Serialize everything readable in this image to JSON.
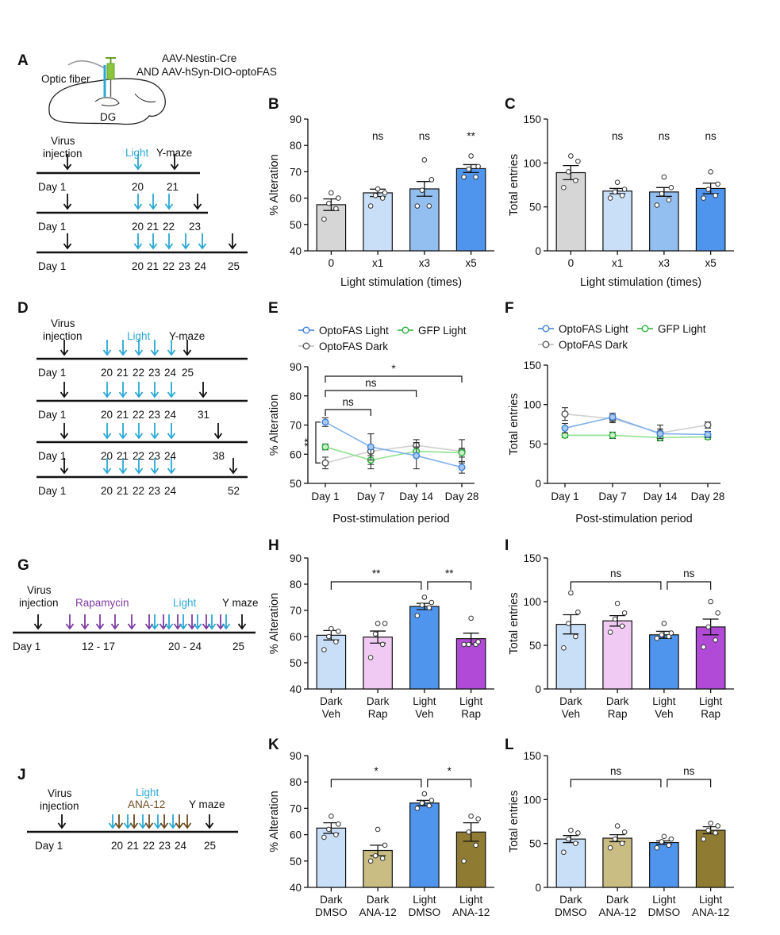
{
  "colors": {
    "dark_gray_bar": "#d6d6d6",
    "light_blue_bar": "#c9dff7",
    "mid_blue_bar": "#92bff0",
    "blue_bar": "#4f95ee",
    "pink_bar": "#f0caf3",
    "purple_bar": "#b24ad8",
    "khaki_bar": "#c9bd83",
    "olive_bar": "#8f7b32",
    "optofas_light": "#3c7fd9",
    "gfp_light": "#27b23a",
    "optofas_dark": "#9b9b9b",
    "light_arrow": "#29a8d6",
    "rapamycin_arrow": "#7d3aa3",
    "ana12_arrow": "#6e4a1f",
    "black_arrow": "#111111"
  },
  "panels": {
    "A": {
      "letter": "A",
      "virus_label": "AAV-Nestin-Cre",
      "virus_label2": "AND AAV-hSyn-DIO-optoFAS",
      "fiber_label": "Optic fiber",
      "region_label": "DG",
      "timeline_headers": {
        "virus": "Virus",
        "virus2": "injection",
        "light": "Light",
        "ymaze": "Y-maze"
      },
      "rows": [
        {
          "days": [
            "Day 1",
            "20",
            "21"
          ]
        },
        {
          "days": [
            "Day 1",
            "20",
            "21",
            "22",
            "23"
          ]
        },
        {
          "days": [
            "Day 1",
            "20",
            "21",
            "22",
            "23",
            "24",
            "25"
          ]
        }
      ]
    },
    "D": {
      "letter": "D",
      "timeline_headers": {
        "virus": "Virus",
        "virus2": "injection",
        "light": "Light",
        "ymaze": "Y-maze"
      },
      "rows": [
        {
          "days": [
            "Day 1",
            "20",
            "21",
            "22",
            "23",
            "24",
            "25"
          ]
        },
        {
          "days": [
            "Day 1",
            "20",
            "21",
            "22",
            "23",
            "24",
            "31"
          ]
        },
        {
          "days": [
            "Day 1",
            "20",
            "21",
            "22",
            "23",
            "24",
            "38"
          ]
        },
        {
          "days": [
            "Day 1",
            "20",
            "21",
            "22",
            "23",
            "24",
            "52"
          ]
        }
      ]
    },
    "G": {
      "letter": "G",
      "labels": {
        "virus": "Virus",
        "virus2": "injection",
        "drug": "Rapamycin",
        "light": "Light",
        "ymaze": "Y maze"
      },
      "days": [
        "Day 1",
        "12 - 17",
        "20 - 24",
        "25"
      ]
    },
    "J": {
      "letter": "J",
      "labels": {
        "virus": "Virus",
        "virus2": "injection",
        "light": "Light",
        "drug": "ANA-12",
        "ymaze": "Y maze"
      },
      "days": [
        "Day 1",
        "20",
        "21",
        "22",
        "23",
        "24",
        "25"
      ]
    }
  },
  "chart_data": [
    {
      "id": "B",
      "letter": "B",
      "type": "bar",
      "categories": [
        "0",
        "x1",
        "x3",
        "x5"
      ],
      "values": [
        57.5,
        62,
        63.5,
        71.2
      ],
      "sem": [
        2.2,
        1.4,
        2.8,
        1.5
      ],
      "points": [
        [
          52,
          56,
          58,
          60,
          62
        ],
        [
          57,
          60,
          61,
          62,
          63.5
        ],
        [
          57,
          57,
          63,
          67,
          74.5
        ],
        [
          68,
          68,
          71,
          72,
          76
        ]
      ],
      "significance": [
        "",
        "ns",
        "ns",
        "**"
      ],
      "ylabel": "% Alteration",
      "xlabel": "Light stimulation (times)",
      "ylim": [
        40,
        90
      ],
      "yticks": [
        40,
        50,
        60,
        70,
        80,
        90
      ]
    },
    {
      "id": "C",
      "letter": "C",
      "type": "bar",
      "categories": [
        "0",
        "x1",
        "x3",
        "x5"
      ],
      "values": [
        89,
        68,
        67,
        71
      ],
      "sem": [
        8,
        3,
        5,
        6
      ],
      "points": [
        [
          72,
          80,
          90,
          102,
          108
        ],
        [
          60,
          63,
          67,
          70,
          78
        ],
        [
          52,
          58,
          65,
          72,
          84
        ],
        [
          60,
          63,
          70,
          76,
          90
        ]
      ],
      "significance": [
        "",
        "ns",
        "ns",
        "ns"
      ],
      "ylabel": "Total entries",
      "xlabel": "Light stimulation (times)",
      "ylim": [
        0,
        150
      ],
      "yticks": [
        0,
        50,
        100,
        150
      ]
    },
    {
      "id": "E",
      "letter": "E",
      "type": "line",
      "categories": [
        "Day 1",
        "Day 7",
        "Day 14",
        "Day 28"
      ],
      "series": [
        {
          "name": "OptoFAS Light",
          "values": [
            71,
            62.5,
            59.5,
            55.5
          ],
          "sem": [
            1.5,
            4.5,
            4.5,
            2
          ],
          "color_key": "optofas_light"
        },
        {
          "name": "GFP Light",
          "values": [
            62.5,
            58,
            61,
            60.5
          ],
          "sem": [
            1,
            1.5,
            1.5,
            1.5
          ],
          "color_key": "gfp_light"
        },
        {
          "name": "OptoFAS Dark",
          "values": [
            57,
            61,
            63,
            61
          ],
          "sem": [
            2,
            6,
            2,
            4
          ],
          "color_key": "optofas_dark"
        }
      ],
      "significance_brackets": [
        {
          "from": 0,
          "to": 1,
          "label": "ns"
        },
        {
          "from": 0,
          "to": 2,
          "label": "ns"
        },
        {
          "from": 0,
          "to": 3,
          "label": "*"
        }
      ],
      "side_significance": "**",
      "ylabel": "% Alteration",
      "xlabel": "Post-stimulation period",
      "ylim": [
        50,
        90
      ],
      "yticks": [
        50,
        60,
        70,
        80,
        90
      ],
      "legend_position": "top"
    },
    {
      "id": "F",
      "letter": "F",
      "type": "line",
      "categories": [
        "Day 1",
        "Day 7",
        "Day 14",
        "Day 28"
      ],
      "series": [
        {
          "name": "OptoFAS Light",
          "values": [
            70,
            84,
            63,
            62
          ],
          "sem": [
            6,
            5,
            6,
            4
          ],
          "color_key": "optofas_light"
        },
        {
          "name": "GFP Light",
          "values": [
            61,
            61,
            58,
            59
          ],
          "sem": [
            3,
            4,
            3,
            3
          ],
          "color_key": "gfp_light"
        },
        {
          "name": "OptoFAS Dark",
          "values": [
            88,
            82,
            64,
            74
          ],
          "sem": [
            8,
            5,
            10,
            4
          ],
          "color_key": "optofas_dark"
        }
      ],
      "ylabel": "Total entries",
      "xlabel": "Post-stimulation period",
      "ylim": [
        0,
        150
      ],
      "yticks": [
        0,
        50,
        100,
        150
      ],
      "legend_position": "top"
    },
    {
      "id": "H",
      "letter": "H",
      "type": "bar",
      "categories": [
        "Dark Veh",
        "Dark Rap",
        "Light Veh",
        "Light Rap"
      ],
      "values": [
        60.5,
        59.8,
        71.5,
        59.2
      ],
      "sem": [
        1.8,
        2.3,
        1.2,
        2.1
      ],
      "points": [
        [
          55,
          58,
          60,
          62,
          63
        ],
        [
          52,
          57,
          61,
          65,
          65
        ],
        [
          68,
          71,
          72,
          73,
          75
        ],
        [
          57,
          57,
          57,
          58,
          67
        ]
      ],
      "brackets": [
        {
          "from": 0,
          "to": 2,
          "label": "**"
        },
        {
          "from": 2,
          "to": 3,
          "label": "**"
        }
      ],
      "ylabel": "% Alteration",
      "xlabel": "",
      "ylim": [
        40,
        90
      ],
      "yticks": [
        40,
        50,
        60,
        70,
        80,
        90
      ]
    },
    {
      "id": "I",
      "letter": "I",
      "type": "bar",
      "categories": [
        "Dark Veh",
        "Dark Rap",
        "Light Veh",
        "Light Rap"
      ],
      "values": [
        74,
        78,
        62,
        71
      ],
      "sem": [
        11,
        6,
        4,
        9
      ],
      "points": [
        [
          47,
          60,
          75,
          88,
          110
        ],
        [
          65,
          72,
          80,
          87,
          98
        ],
        [
          58,
          60,
          62,
          64,
          75
        ],
        [
          48,
          56,
          71,
          87,
          100
        ]
      ],
      "brackets": [
        {
          "from": 0,
          "to": 2,
          "label": "ns"
        },
        {
          "from": 2,
          "to": 3,
          "label": "ns"
        }
      ],
      "ylabel": "Total entries",
      "xlabel": "",
      "ylim": [
        0,
        150
      ],
      "yticks": [
        0,
        50,
        100,
        150
      ]
    },
    {
      "id": "K",
      "letter": "K",
      "type": "bar",
      "categories": [
        "Dark DMSO",
        "Dark ANA-12",
        "Light DMSO",
        "Light ANA-12"
      ],
      "values": [
        62.5,
        54,
        72,
        61
      ],
      "sem": [
        2,
        2,
        1,
        3.5
      ],
      "points": [
        [
          59,
          60,
          62,
          64,
          67
        ],
        [
          50,
          51,
          52,
          56,
          62
        ],
        [
          70,
          71,
          72,
          73,
          75.5
        ],
        [
          50,
          56,
          61,
          66,
          67
        ]
      ],
      "brackets": [
        {
          "from": 0,
          "to": 2,
          "label": "*"
        },
        {
          "from": 2,
          "to": 3,
          "label": "*"
        }
      ],
      "ylabel": "% Alteration",
      "xlabel": "",
      "ylim": [
        40,
        90
      ],
      "yticks": [
        40,
        50,
        60,
        70,
        80,
        90
      ]
    },
    {
      "id": "L",
      "letter": "L",
      "type": "bar",
      "categories": [
        "Dark DMSO",
        "Dark ANA-12",
        "Light DMSO",
        "Light ANA-12"
      ],
      "values": [
        55,
        56,
        51,
        65
      ],
      "sem": [
        4,
        4,
        2,
        4
      ],
      "points": [
        [
          40,
          50,
          55,
          62,
          65
        ],
        [
          45,
          50,
          55,
          63,
          70
        ],
        [
          45,
          48,
          52,
          55,
          58
        ],
        [
          55,
          62,
          65,
          70,
          73
        ]
      ],
      "brackets": [
        {
          "from": 0,
          "to": 2,
          "label": "ns"
        },
        {
          "from": 2,
          "to": 3,
          "label": "ns"
        }
      ],
      "ylabel": "Total entries",
      "xlabel": "",
      "ylim": [
        0,
        150
      ],
      "yticks": [
        0,
        50,
        100,
        150
      ]
    }
  ]
}
